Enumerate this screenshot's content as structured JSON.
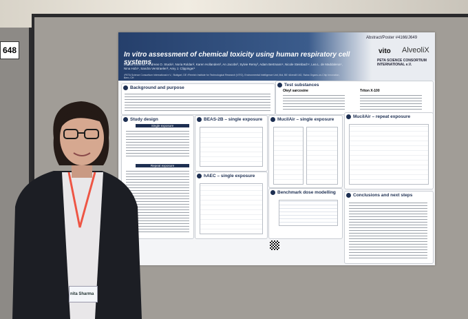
{
  "scene": {
    "booth_number": "648",
    "badge_name": "nita Sharma",
    "poster": {
      "abstract_number": "Abstract/Poster #4166/J649",
      "title": "In vitro assessment of chemical toxicity using human respiratory cell systems",
      "authors": "Monita Sharma¹, Andreas O. Stucki¹, Noria Roldan², Karen Hollanders³, An Jacobs³, Sylvie Remy³, Adam Bertmann⁴, Nicole Steinbach⁴, Lea L. de Maddalena⁴, Nina Hobi⁴, Sandra Verstraelen³, Amy J. Clippinger¹",
      "affiliations": "¹PETA Science Consortium International e.V., Stuttgart, DE  ²Flemish Institute for Technological Research (VITO), Environmental Intelligence Unit, Mol, BE  ³AlveoliX AG, Swiss Organs-on-Chip Innovation, Bern, CH",
      "logos": [
        "vito",
        "AlveoliX",
        "PETA SCIENCE CONSORTIUM INTERNATIONAL e.V."
      ],
      "sections": {
        "background": "Background and purpose",
        "test_substances": "Test substances",
        "substance_1": "Oleyl sarcosine",
        "substance_2": "Triton X-100",
        "study_design": "Study design",
        "single_exposure": "Single exposure",
        "repeat_exposure": "Repeat exposure",
        "beas": "BEAS-2B – single exposure",
        "mucilair_single": "MucilAir – single exposure",
        "mucilair_repeat": "MucilAir – repeat exposure",
        "haec": "hAEC – single exposure",
        "benchmark": "Benchmark dose modelling",
        "conclusions": "Conclusions and next steps"
      }
    }
  }
}
